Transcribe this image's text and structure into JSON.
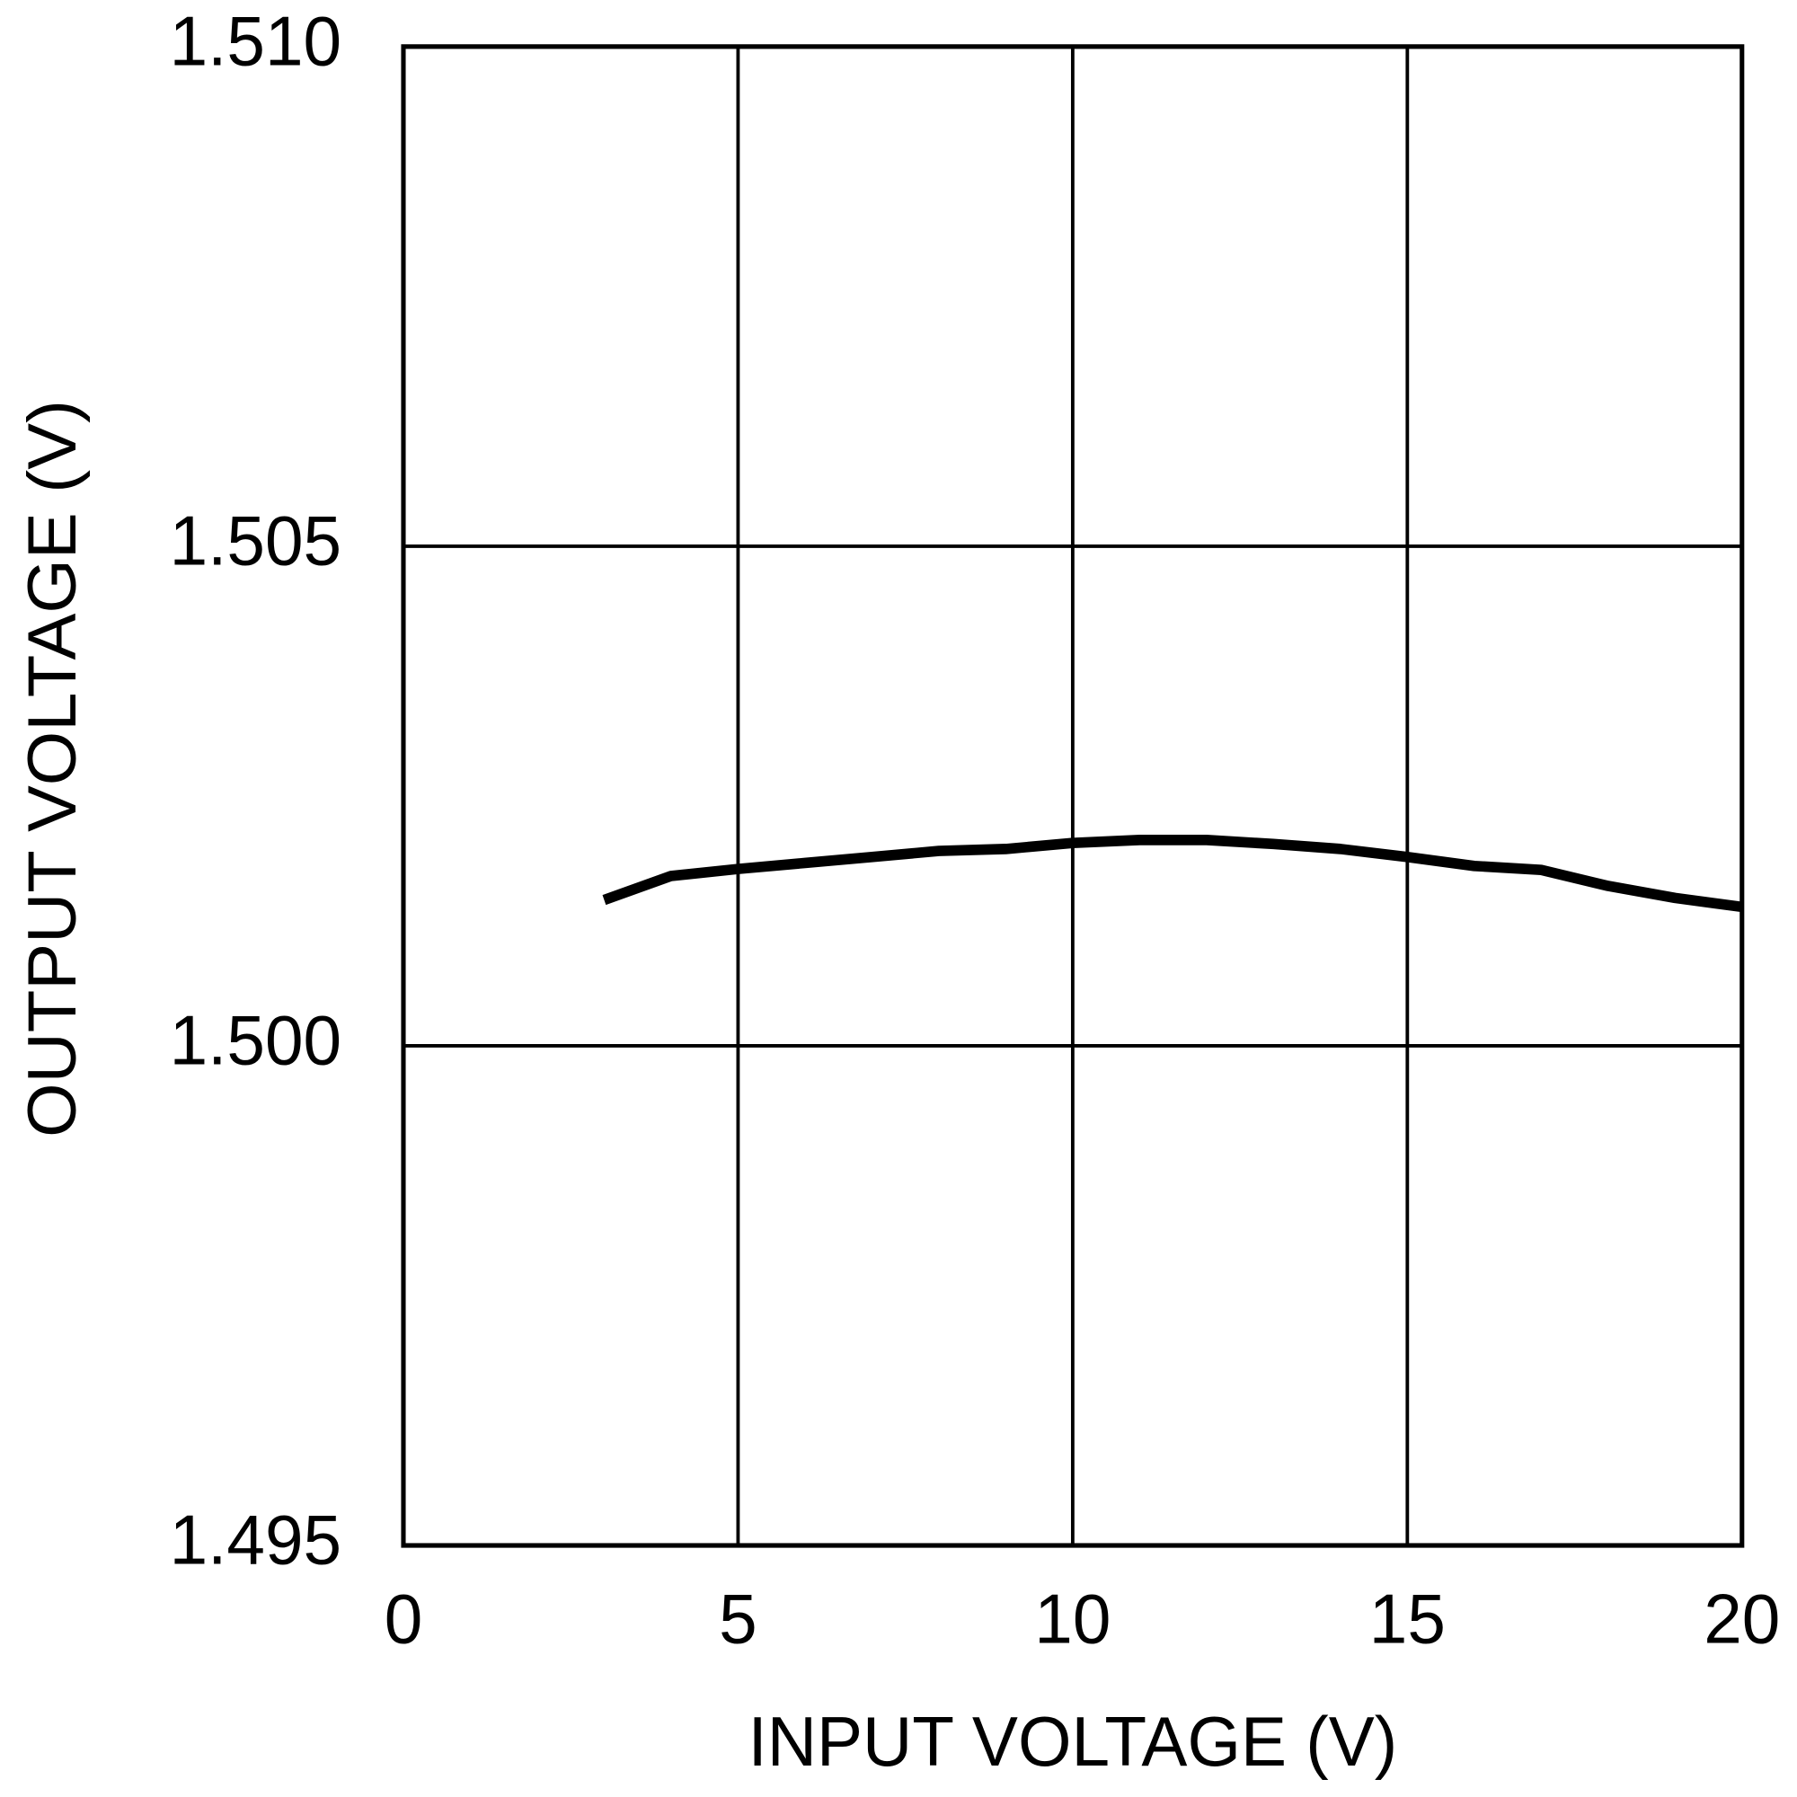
{
  "chart_data": {
    "type": "line",
    "xlabel": "INPUT VOLTAGE (V)",
    "ylabel": "OUTPUT VOLTAGE (V)",
    "x": [
      3,
      4,
      5,
      6,
      7,
      8,
      9,
      10,
      11,
      12,
      13,
      14,
      15,
      16,
      17,
      18,
      19,
      20
    ],
    "series": [
      {
        "color": "#000000",
        "values": [
          1.50146,
          1.5017,
          1.50177,
          1.50183,
          1.50189,
          1.50195,
          1.50197,
          1.50203,
          1.50206,
          1.50206,
          1.50202,
          1.50197,
          1.50189,
          1.5018,
          1.50176,
          1.5016,
          1.50148,
          1.50139
        ]
      }
    ],
    "xlim": [
      0,
      20
    ],
    "xticks": [
      0,
      5,
      10,
      15,
      20
    ],
    "ylim": [
      1.495,
      1.51
    ],
    "yticks": [
      1.495,
      {
        "value": 1.5,
        "label": "1.500"
      },
      1.505,
      {
        "value": 1.51,
        "label": "1.510"
      }
    ],
    "grid": true
  }
}
